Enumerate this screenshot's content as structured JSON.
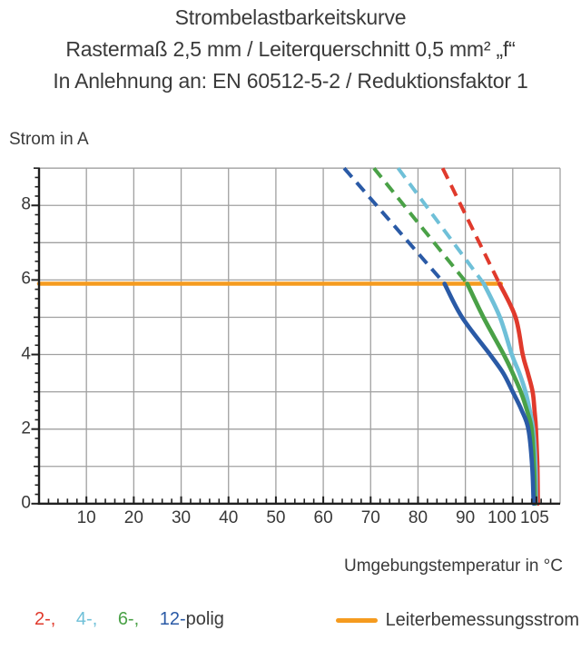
{
  "title": {
    "line1": "Strombelastbarkeitskurve",
    "line2": "Rastermaß 2,5 mm / Leiterquerschnitt 0,5 mm² „f“",
    "line3": "In Anlehnung an: EN 60512-5-2 / Reduktionsfaktor 1"
  },
  "chart_data": {
    "type": "line",
    "title": "Strombelastbarkeitskurve",
    "subtitle": "Rastermaß 2,5 mm / Leiterquerschnitt 0,5 mm² „f“",
    "note": "In Anlehnung an: EN 60512-5-2 / Reduktionsfaktor 1",
    "xlabel": "Umgebungstemperatur in °C",
    "ylabel": "Strom in A",
    "grid": true,
    "x_axis": {
      "min": 0,
      "max": 110,
      "major_ticks": [
        10,
        20,
        30,
        40,
        50,
        60,
        70,
        80,
        90,
        100,
        105
      ],
      "minor_step": 2,
      "grid_step": 10
    },
    "y_axis": {
      "min": 0,
      "max": 9,
      "labeled_ticks": [
        0,
        2,
        4,
        6,
        8
      ],
      "minor_step": 0.25,
      "grid_step": 1
    },
    "reference_line": {
      "name": "Leiterbemessungsstrom",
      "value": 5.9,
      "x_start": 0,
      "x_end": 97.5,
      "color": "#f59b1f"
    },
    "series": [
      {
        "name": "2-polig",
        "poles": 2,
        "color": "#e03a2c",
        "style_above_rating": "dashed",
        "dashed": [
          [
            85.2,
            9.0
          ],
          [
            97.2,
            5.9
          ]
        ],
        "solid": [
          [
            97.2,
            5.9
          ],
          [
            100.6,
            5.0
          ],
          [
            102.1,
            4.0
          ],
          [
            103.2,
            3.5
          ],
          [
            104.2,
            3.0
          ],
          [
            104.6,
            2.5
          ],
          [
            104.9,
            2.0
          ],
          [
            105.2,
            1.0
          ],
          [
            105.3,
            0.0
          ]
        ]
      },
      {
        "name": "4-polig",
        "poles": 4,
        "color": "#6fc0d8",
        "style_above_rating": "dashed",
        "dashed": [
          [
            75.8,
            9.0
          ],
          [
            93.9,
            5.9
          ]
        ],
        "solid": [
          [
            93.9,
            5.9
          ],
          [
            97.3,
            5.0
          ],
          [
            99.8,
            4.0
          ],
          [
            101.4,
            3.5
          ],
          [
            102.7,
            3.0
          ],
          [
            103.6,
            2.5
          ],
          [
            104.3,
            2.0
          ],
          [
            104.8,
            1.0
          ],
          [
            104.9,
            0.0
          ]
        ]
      },
      {
        "name": "6-polig",
        "poles": 6,
        "color": "#4aa147",
        "style_above_rating": "dashed",
        "dashed": [
          [
            70.7,
            9.0
          ],
          [
            90.4,
            5.9
          ]
        ],
        "solid": [
          [
            90.4,
            5.9
          ],
          [
            93.8,
            5.0
          ],
          [
            98.1,
            4.0
          ],
          [
            100.0,
            3.5
          ],
          [
            101.7,
            3.0
          ],
          [
            103.0,
            2.5
          ],
          [
            104.0,
            2.0
          ],
          [
            104.5,
            1.0
          ],
          [
            104.7,
            0.0
          ]
        ]
      },
      {
        "name": "12-polig",
        "poles": 12,
        "color": "#2a5aa6",
        "style_above_rating": "dashed",
        "dashed": [
          [
            64.4,
            9.0
          ],
          [
            85.6,
            5.9
          ]
        ],
        "solid": [
          [
            85.6,
            5.9
          ],
          [
            89.3,
            5.0
          ],
          [
            95.2,
            4.0
          ],
          [
            98.0,
            3.5
          ],
          [
            100.0,
            3.0
          ],
          [
            101.9,
            2.5
          ],
          [
            103.3,
            2.0
          ],
          [
            104.1,
            1.0
          ],
          [
            104.4,
            0.0
          ]
        ]
      }
    ],
    "colors": {
      "grid": "#a0a0a0",
      "axis": "#1f1f1f",
      "text": "#3a3a3a"
    }
  },
  "legend": {
    "poles": [
      {
        "label": "2-,",
        "color": "#e03a2c"
      },
      {
        "label": "4-,",
        "color": "#6fc0d8"
      },
      {
        "label": "6-,",
        "color": "#4aa147"
      },
      {
        "label": "12-",
        "color": "#2a5aa6"
      }
    ],
    "suffix": "polig",
    "suffix_color": "#3a3a3a",
    "reference_label": "Leiterbemessungsstrom",
    "reference_color": "#f59b1f"
  }
}
